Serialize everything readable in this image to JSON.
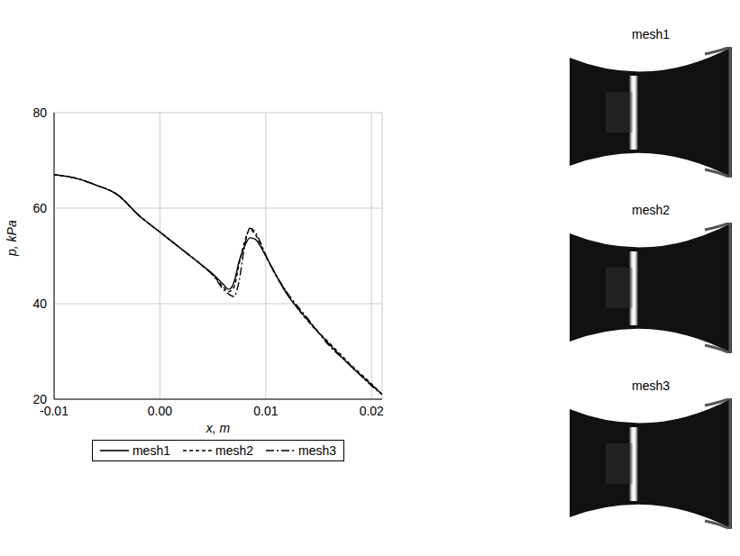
{
  "chart_data": {
    "type": "line",
    "x_label": "x, m",
    "y_label": "p, kPa",
    "x": [
      -0.01,
      -0.008,
      -0.006,
      -0.004,
      -0.002,
      0,
      0.002,
      0.004,
      0.005,
      0.006,
      0.0065,
      0.007,
      0.0075,
      0.008,
      0.0085,
      0.009,
      0.0095,
      0.01,
      0.012,
      0.014,
      0.016,
      0.018,
      0.02,
      0.021
    ],
    "series": [
      {
        "name": "mesh1",
        "color": "#000000",
        "line_style": "solid",
        "values": [
          67,
          66.3,
          64.8,
          62.8,
          58.5,
          55,
          51.5,
          48,
          46.2,
          44,
          43,
          44.5,
          49,
          52,
          53.8,
          53.5,
          52,
          50,
          42,
          36.5,
          31.5,
          27,
          23,
          21
        ]
      },
      {
        "name": "mesh2",
        "color": "#000000",
        "line_style": "dashed",
        "values": [
          67,
          66.3,
          64.8,
          62.8,
          58.5,
          55,
          51.5,
          48,
          46,
          43.5,
          42.5,
          43.5,
          48.5,
          53,
          55.5,
          54.5,
          52.5,
          50,
          42.2,
          36.3,
          31.8,
          27.3,
          23.2,
          21
        ]
      },
      {
        "name": "mesh3",
        "color": "#000000",
        "line_style": "dashdot",
        "values": [
          67,
          66.3,
          64.8,
          62.8,
          58.5,
          55,
          51.5,
          48,
          46,
          43,
          42,
          41.5,
          45,
          52,
          55.8,
          55,
          52.8,
          50.2,
          42.4,
          36.8,
          31.2,
          27.1,
          22.8,
          21
        ]
      }
    ],
    "xlim": [
      -0.01,
      0.021
    ],
    "xticks": [
      -0.01,
      {
        "value": 0,
        "label": "0.00"
      },
      0.01,
      0.02
    ],
    "ylim": [
      20,
      80
    ],
    "yticks": [
      20,
      40,
      60,
      80
    ],
    "grid": true,
    "legend": "bottom"
  },
  "images": [
    {
      "title": "mesh1"
    },
    {
      "title": "mesh2"
    },
    {
      "title": "mesh3"
    }
  ]
}
